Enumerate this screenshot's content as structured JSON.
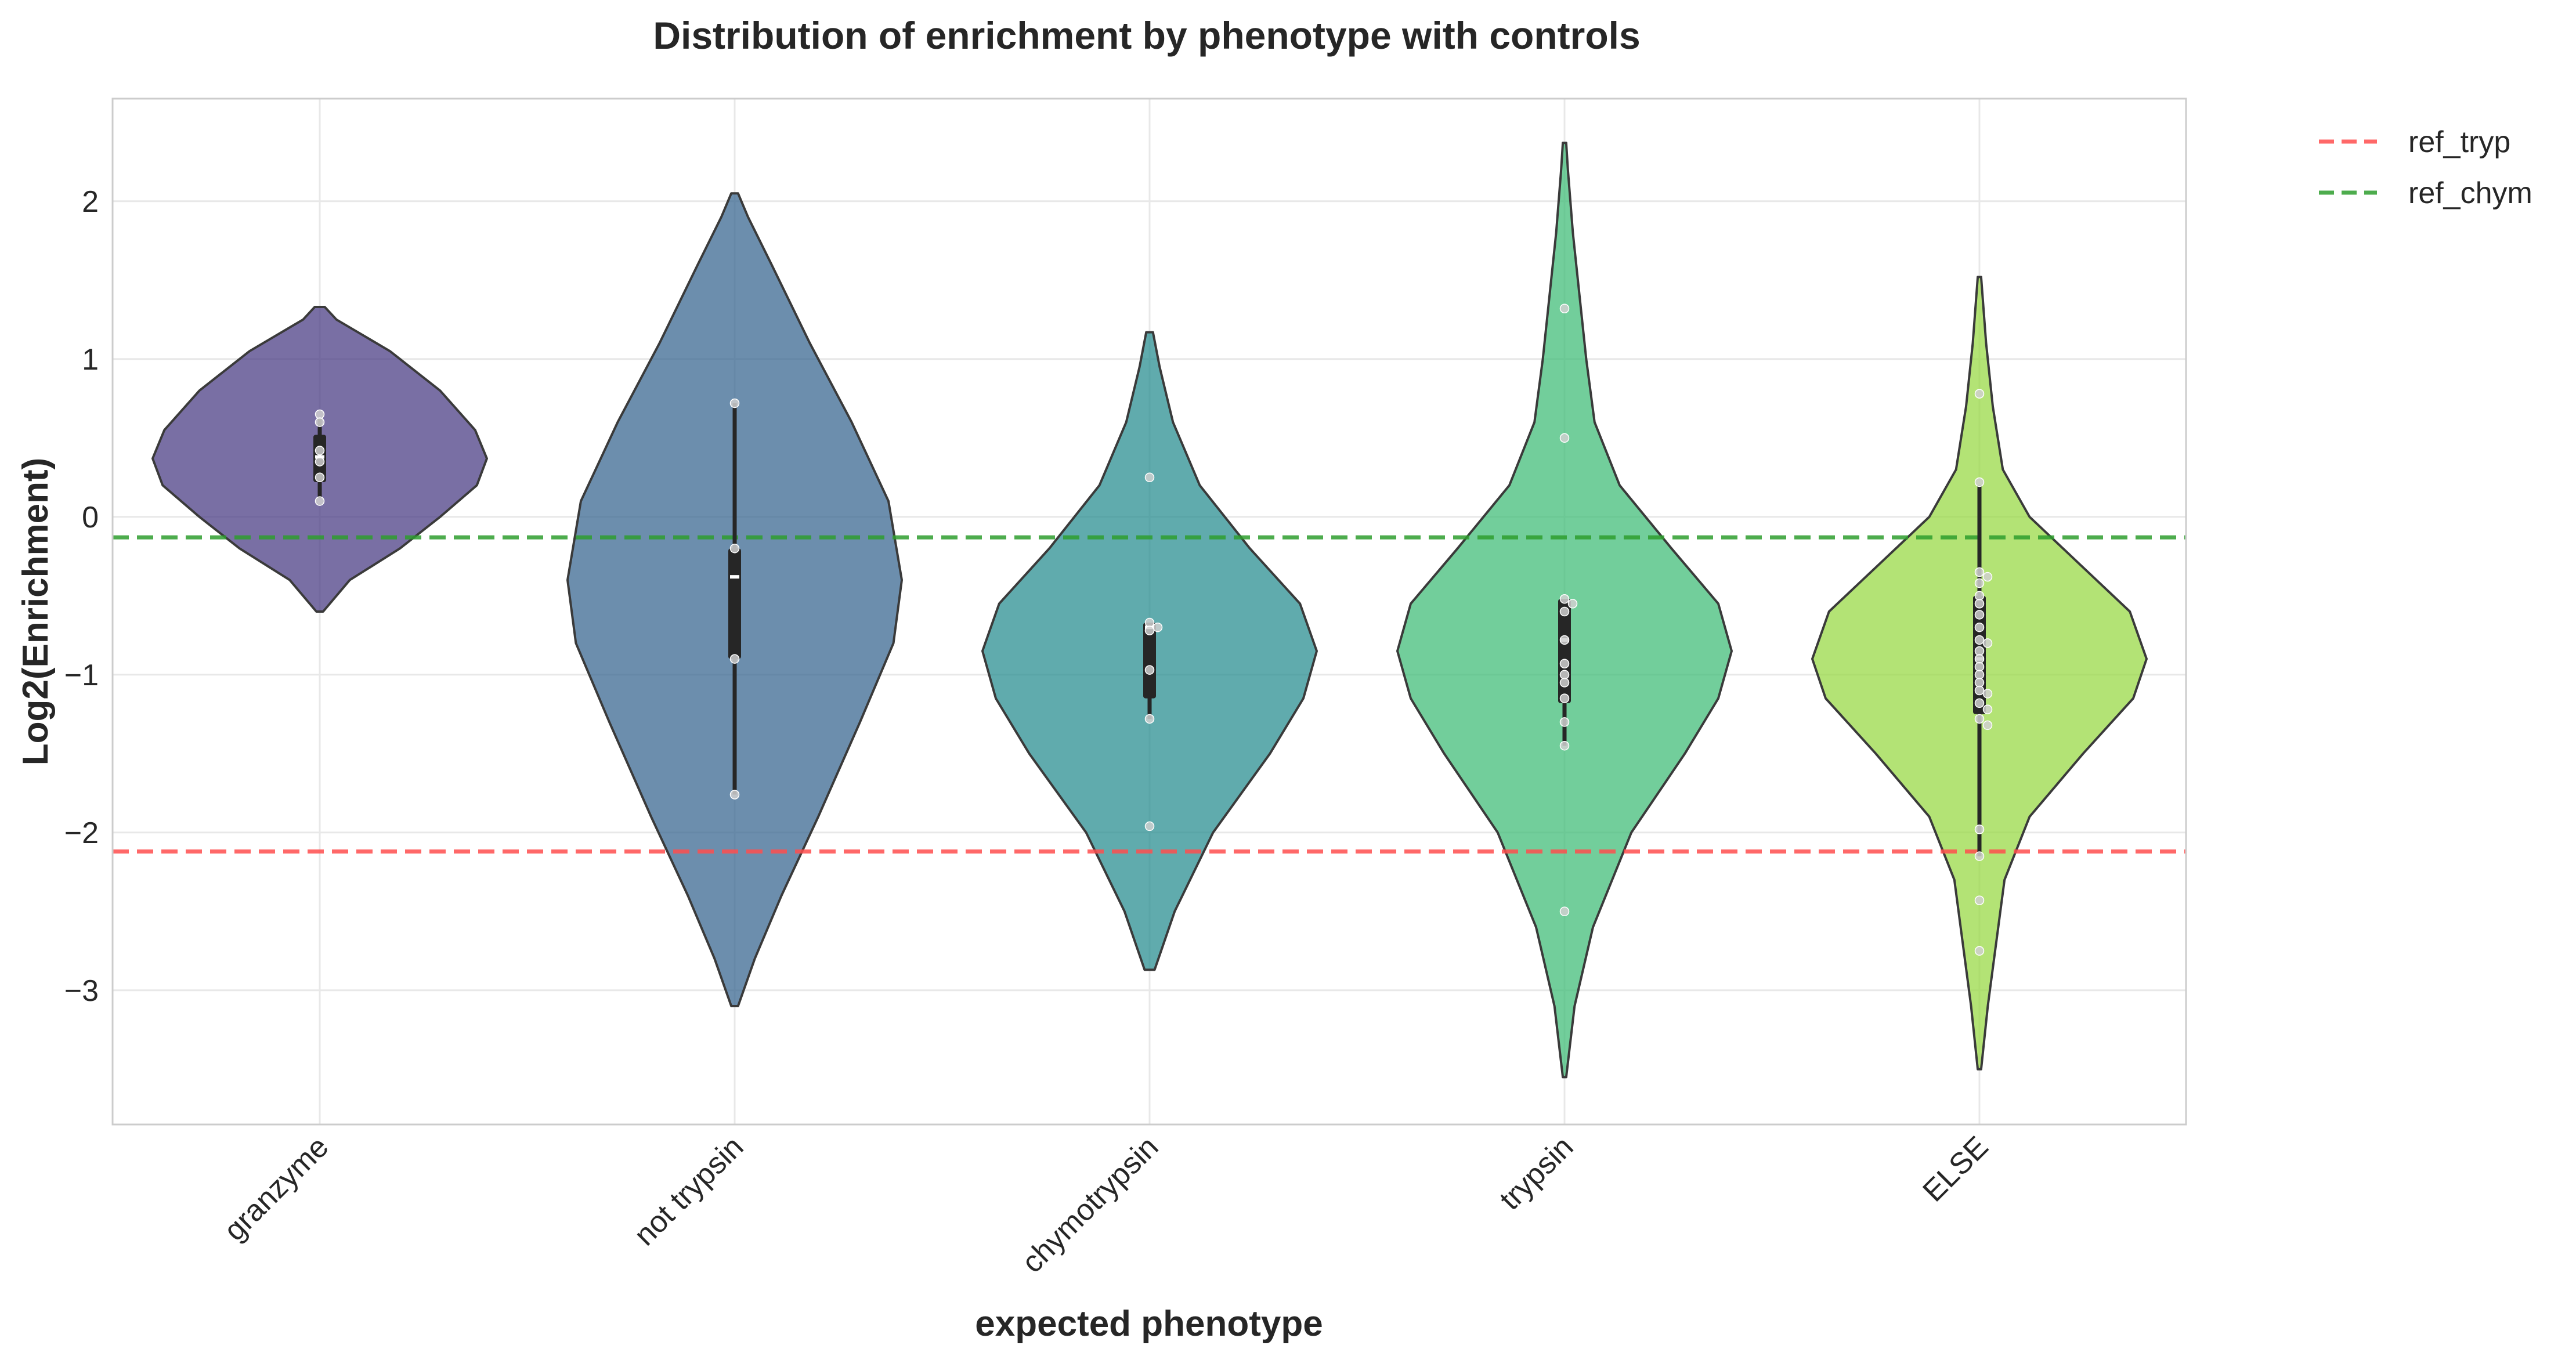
{
  "chart_data": {
    "type": "violin",
    "title": "Distribution of enrichment by phenotype with controls",
    "xlabel": "expected phenotype",
    "ylabel": "Log2(Enrichment)",
    "ylim": [
      -3.85,
      2.65
    ],
    "yticks": [
      2,
      1,
      0,
      -1,
      -2,
      -3
    ],
    "ytick_labels": [
      "2",
      "1",
      "0",
      "−1",
      "−2",
      "−3"
    ],
    "grid": true,
    "legend_position": "outside-top-right",
    "categories": [
      "granzyme",
      "not trypsin",
      "chymotrypsin",
      "trypsin",
      "ELSE"
    ],
    "colors": [
      "#453781",
      "#33638d",
      "#238a8d",
      "#3cbb75",
      "#95d840"
    ],
    "series": [
      {
        "category": "granzyme",
        "points": [
          0.65,
          0.6,
          0.42,
          0.35,
          0.25,
          0.1
        ],
        "box": {
          "q1": 0.22,
          "median": 0.38,
          "q3": 0.52,
          "whisker_low": 0.12,
          "whisker_high": 0.62
        },
        "violin": {
          "y_min": -0.6,
          "y_max": 1.33,
          "profile": [
            [
              -0.6,
              0.02
            ],
            [
              -0.4,
              0.18
            ],
            [
              -0.2,
              0.48
            ],
            [
              0.0,
              0.72
            ],
            [
              0.2,
              0.94
            ],
            [
              0.37,
              1.0
            ],
            [
              0.55,
              0.93
            ],
            [
              0.8,
              0.72
            ],
            [
              1.05,
              0.42
            ],
            [
              1.25,
              0.1
            ],
            [
              1.33,
              0.03
            ]
          ]
        }
      },
      {
        "category": "not trypsin",
        "points": [
          0.72,
          -0.2,
          -0.9,
          -1.76
        ],
        "box": {
          "q1": -0.9,
          "median": -0.38,
          "q3": -0.2,
          "whisker_low": -1.76,
          "whisker_high": 0.72
        },
        "violin": {
          "y_min": -3.1,
          "y_max": 2.05,
          "profile": [
            [
              -3.1,
              0.02
            ],
            [
              -2.8,
              0.12
            ],
            [
              -2.4,
              0.28
            ],
            [
              -1.9,
              0.5
            ],
            [
              -1.3,
              0.75
            ],
            [
              -0.8,
              0.95
            ],
            [
              -0.4,
              1.0
            ],
            [
              0.1,
              0.92
            ],
            [
              0.6,
              0.7
            ],
            [
              1.1,
              0.45
            ],
            [
              1.6,
              0.22
            ],
            [
              1.9,
              0.08
            ],
            [
              2.05,
              0.02
            ]
          ]
        }
      },
      {
        "category": "chymotrypsin",
        "points": [
          0.25,
          -0.67,
          -0.7,
          -0.72,
          -0.97,
          -1.28,
          -1.96
        ],
        "box": {
          "q1": -1.15,
          "median": -0.7,
          "q3": -0.67,
          "whisker_low": -1.28,
          "whisker_high": -0.67
        },
        "violin": {
          "y_min": -2.87,
          "y_max": 1.17,
          "profile": [
            [
              -2.87,
              0.03
            ],
            [
              -2.5,
              0.15
            ],
            [
              -2.0,
              0.38
            ],
            [
              -1.5,
              0.72
            ],
            [
              -1.15,
              0.92
            ],
            [
              -0.85,
              1.0
            ],
            [
              -0.55,
              0.9
            ],
            [
              -0.2,
              0.6
            ],
            [
              0.2,
              0.3
            ],
            [
              0.6,
              0.14
            ],
            [
              0.95,
              0.06
            ],
            [
              1.17,
              0.02
            ]
          ]
        }
      },
      {
        "category": "trypsin",
        "points": [
          1.32,
          0.5,
          -0.52,
          -0.55,
          -0.6,
          -0.78,
          -0.93,
          -1.0,
          -1.05,
          -1.15,
          -1.3,
          -1.45,
          -2.5
        ],
        "box": {
          "q1": -1.18,
          "median": -0.78,
          "q3": -0.52,
          "whisker_low": -1.45,
          "whisker_high": -0.52
        },
        "violin": {
          "y_min": -3.55,
          "y_max": 2.37,
          "profile": [
            [
              -3.55,
              0.01
            ],
            [
              -3.1,
              0.06
            ],
            [
              -2.6,
              0.17
            ],
            [
              -2.0,
              0.4
            ],
            [
              -1.5,
              0.72
            ],
            [
              -1.15,
              0.92
            ],
            [
              -0.85,
              1.0
            ],
            [
              -0.55,
              0.92
            ],
            [
              -0.2,
              0.64
            ],
            [
              0.2,
              0.33
            ],
            [
              0.6,
              0.18
            ],
            [
              1.0,
              0.13
            ],
            [
              1.4,
              0.09
            ],
            [
              1.8,
              0.05
            ],
            [
              2.2,
              0.02
            ],
            [
              2.37,
              0.01
            ]
          ]
        }
      },
      {
        "category": "ELSE",
        "points": [
          0.78,
          0.22,
          -0.35,
          -0.38,
          -0.42,
          -0.5,
          -0.55,
          -0.62,
          -0.7,
          -0.78,
          -0.8,
          -0.85,
          -0.9,
          -0.95,
          -1.0,
          -1.05,
          -1.1,
          -1.12,
          -1.18,
          -1.22,
          -1.28,
          -1.32,
          -1.98,
          -2.15,
          -2.43,
          -2.75
        ],
        "box": {
          "q1": -1.25,
          "median": -0.9,
          "q3": -0.5,
          "whisker_low": -2.15,
          "whisker_high": 0.2
        },
        "violin": {
          "y_min": -3.5,
          "y_max": 1.52,
          "profile": [
            [
              -3.5,
              0.01
            ],
            [
              -3.1,
              0.05
            ],
            [
              -2.7,
              0.1
            ],
            [
              -2.3,
              0.15
            ],
            [
              -1.9,
              0.3
            ],
            [
              -1.5,
              0.62
            ],
            [
              -1.15,
              0.92
            ],
            [
              -0.9,
              1.0
            ],
            [
              -0.6,
              0.9
            ],
            [
              -0.3,
              0.6
            ],
            [
              0.0,
              0.3
            ],
            [
              0.3,
              0.14
            ],
            [
              0.7,
              0.08
            ],
            [
              1.1,
              0.04
            ],
            [
              1.52,
              0.01
            ]
          ]
        }
      }
    ],
    "reference_lines": [
      {
        "name": "ref_tryp",
        "y": -2.12,
        "color": "#ff4d4d"
      },
      {
        "name": "ref_chym",
        "y": -0.13,
        "color": "#2e9e2e"
      }
    ]
  }
}
